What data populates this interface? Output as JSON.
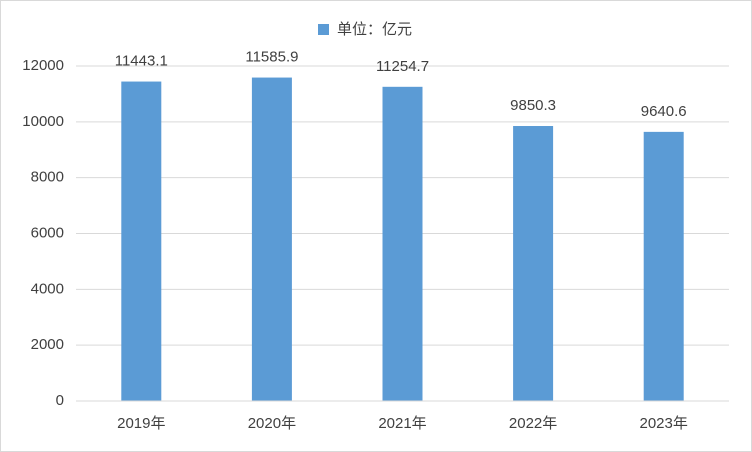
{
  "chart_data": {
    "type": "bar",
    "categories": [
      "2019年",
      "2020年",
      "2021年",
      "2022年",
      "2023年"
    ],
    "series": [
      {
        "name": "单位：亿元",
        "color": "#5b9bd5",
        "values": [
          11443.1,
          11585.9,
          11254.7,
          9850.3,
          9640.6
        ]
      }
    ],
    "ylim": [
      0,
      12000
    ],
    "yticks": [
      0,
      2000,
      4000,
      6000,
      8000,
      10000,
      12000
    ],
    "grid": true,
    "legend": "top"
  }
}
